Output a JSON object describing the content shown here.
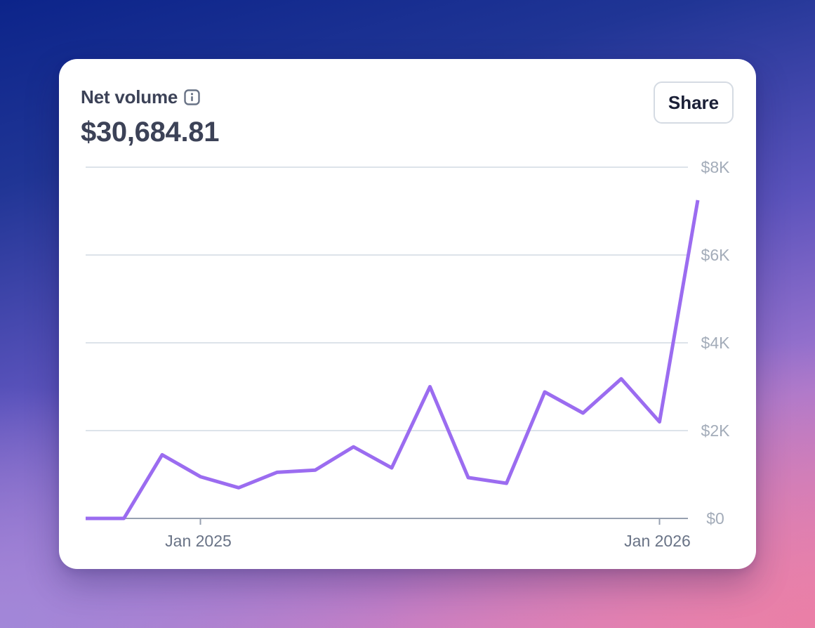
{
  "card": {
    "title": "Net volume",
    "amount": "$30,684.81",
    "share_label": "Share",
    "info_icon": "info-icon"
  },
  "colors": {
    "line": "#9b6cf0",
    "grid": "#dde3ea",
    "axis": "#97a0b0",
    "y_tick_text": "#a3acb9",
    "x_tick_text": "#697386",
    "title_text": "#3c4257"
  },
  "chart_data": {
    "type": "line",
    "title": "",
    "xlabel": "",
    "ylabel": "",
    "ylim": [
      0,
      8000
    ],
    "y_ticks": [
      {
        "value": 0,
        "label": "$0"
      },
      {
        "value": 2000,
        "label": "$2K"
      },
      {
        "value": 4000,
        "label": "$4K"
      },
      {
        "value": 6000,
        "label": "$6K"
      },
      {
        "value": 8000,
        "label": "$8K"
      }
    ],
    "x_ticks": [
      {
        "label": "Jan 2025",
        "x": "2025-01-01"
      },
      {
        "label": "Jan 2026",
        "x": "2026-01-01"
      }
    ],
    "grid": true,
    "y_axis_side": "right",
    "series": [
      {
        "x": [
          "2024-10",
          "2024-11",
          "2024-12",
          "2025-01",
          "2025-02",
          "2025-03",
          "2025-04",
          "2025-05",
          "2025-06",
          "2025-07",
          "2025-08",
          "2025-09",
          "2025-10",
          "2025-11",
          "2025-12",
          "2026-01",
          "2026-02"
        ],
        "values": [
          0,
          0,
          1450,
          950,
          700,
          1050,
          1100,
          1630,
          1150,
          3000,
          930,
          800,
          2880,
          2400,
          3180,
          2200,
          7250
        ]
      }
    ]
  }
}
